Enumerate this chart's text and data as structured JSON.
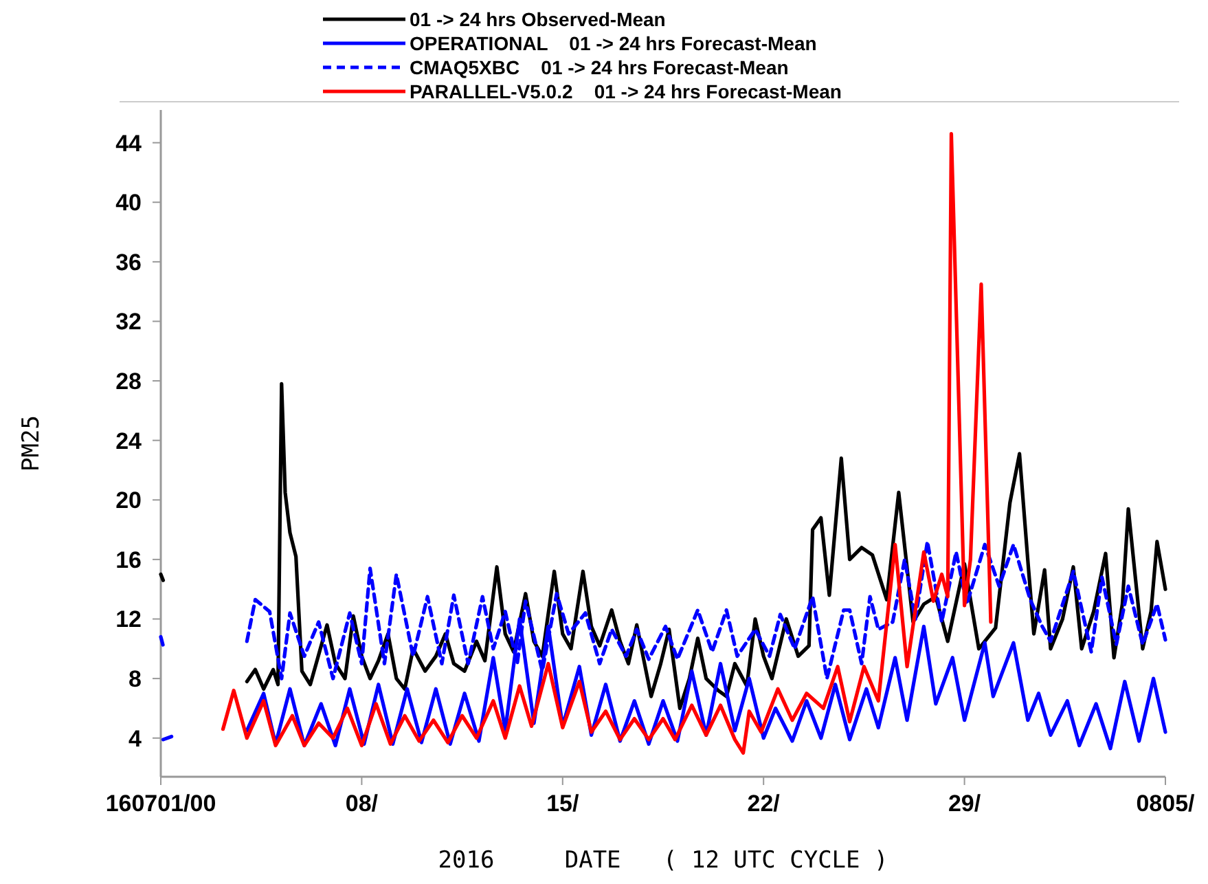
{
  "chart_data": {
    "type": "line",
    "xlabel": "2016     DATE   ( 12 UTC CYCLE )",
    "ylabel": "PM25",
    "legend": "top",
    "grid": false,
    "xlim": [
      "2016-07-01",
      "2016-08-05"
    ],
    "xticks": [
      {
        "value": "2016-07-01",
        "label": "160701/00"
      },
      {
        "value": "2016-07-08",
        "label": "08/"
      },
      {
        "value": "2016-07-15",
        "label": "15/"
      },
      {
        "value": "2016-07-22",
        "label": "22/"
      },
      {
        "value": "2016-07-29",
        "label": "29/"
      },
      {
        "value": "2016-08-05",
        "label": "0805/"
      }
    ],
    "ylim": [
      1.4,
      46.2
    ],
    "yticks": [
      4,
      8,
      12,
      16,
      20,
      24,
      28,
      32,
      36,
      40,
      44
    ],
    "series": [
      {
        "name": "01 -> 24 hrs Observed-Mean",
        "color": "#000000",
        "line_style": "solid",
        "x": [
          "2016-07-01T00:00",
          "2016-07-01T02:00",
          "2016-07-02T12:00",
          "2016-07-04T00:00",
          "2016-07-04T07:00",
          "2016-07-04T14:00",
          "2016-07-04T22:00",
          "2016-07-05T02:00",
          "2016-07-05T05:00",
          "2016-07-05T08:00",
          "2016-07-05T12:00",
          "2016-07-05T17:00",
          "2016-07-05T22:00",
          "2016-07-06T05:00",
          "2016-07-06T12:00",
          "2016-07-06T19:00",
          "2016-07-07T02:00",
          "2016-07-07T10:00",
          "2016-07-07T17:00",
          "2016-07-08T00:00",
          "2016-07-08T07:00",
          "2016-07-08T14:00",
          "2016-07-08T22:00",
          "2016-07-09T05:00",
          "2016-07-09T12:00",
          "2016-07-09T19:00",
          "2016-07-10T05:00",
          "2016-07-10T14:00",
          "2016-07-10T22:00",
          "2016-07-11T05:00",
          "2016-07-11T14:00",
          "2016-07-12T00:00",
          "2016-07-12T07:00",
          "2016-07-12T17:00",
          "2016-07-13T00:00",
          "2016-07-13T07:00",
          "2016-07-13T17:00",
          "2016-07-14T00:00",
          "2016-07-14T07:00",
          "2016-07-14T17:00",
          "2016-07-15T00:00",
          "2016-07-15T07:00",
          "2016-07-15T17:00",
          "2016-07-16T00:00",
          "2016-07-16T07:00",
          "2016-07-16T17:00",
          "2016-07-17T00:00",
          "2016-07-17T07:00",
          "2016-07-17T14:00",
          "2016-07-18T02:00",
          "2016-07-18T10:00",
          "2016-07-18T17:00",
          "2016-07-19T02:00",
          "2016-07-19T10:00",
          "2016-07-19T17:00",
          "2016-07-20T00:00",
          "2016-07-20T10:00",
          "2016-07-20T17:00",
          "2016-07-21T00:00",
          "2016-07-21T10:00",
          "2016-07-21T17:00",
          "2016-07-22T00:00",
          "2016-07-22T07:00",
          "2016-07-22T19:00",
          "2016-07-23T05:00",
          "2016-07-23T14:00",
          "2016-07-23T17:00",
          "2016-07-24T00:00",
          "2016-07-24T07:00",
          "2016-07-24T17:00",
          "2016-07-25T00:00",
          "2016-07-25T10:00",
          "2016-07-25T19:00",
          "2016-07-26T07:00",
          "2016-07-26T17:00",
          "2016-07-27T05:00",
          "2016-07-27T14:00",
          "2016-07-28T00:00",
          "2016-07-28T10:00",
          "2016-07-29T00:00",
          "2016-07-29T12:00",
          "2016-07-30T02:00",
          "2016-07-30T14:00",
          "2016-07-30T22:00",
          "2016-07-31T05:00",
          "2016-07-31T10:00",
          "2016-07-31T19:00",
          "2016-08-01T00:00",
          "2016-08-01T10:00",
          "2016-08-01T19:00",
          "2016-08-02T02:00",
          "2016-08-02T12:00",
          "2016-08-02T22:00",
          "2016-08-03T05:00",
          "2016-08-03T12:00",
          "2016-08-03T17:00",
          "2016-08-04T05:00",
          "2016-08-04T12:00",
          "2016-08-04T17:00",
          "2016-08-05T00:00"
        ],
        "values": [
          15.0,
          14.6,
          null,
          7.8,
          8.6,
          7.3,
          8.6,
          7.6,
          27.8,
          20.5,
          17.8,
          16.2,
          8.5,
          7.6,
          9.6,
          11.6,
          9.0,
          8.0,
          12.2,
          9.5,
          8.0,
          9.2,
          11.0,
          8.0,
          7.3,
          10.0,
          8.5,
          9.5,
          11.0,
          9.0,
          8.5,
          10.5,
          9.2,
          15.5,
          11.0,
          9.8,
          13.7,
          10.5,
          9.5,
          15.2,
          11.0,
          10.0,
          15.2,
          11.5,
          10.2,
          12.6,
          10.5,
          9.0,
          11.6,
          6.8,
          9.0,
          11.3,
          6.0,
          8.0,
          10.7,
          8.0,
          7.2,
          6.8,
          9.0,
          7.5,
          12.0,
          9.5,
          8.0,
          12.0,
          9.5,
          10.2,
          18.0,
          18.8,
          13.6,
          22.8,
          16.0,
          16.8,
          16.3,
          13.3,
          20.5,
          11.8,
          13.0,
          13.5,
          10.5,
          15.7,
          10.0,
          11.4,
          19.8,
          23.1,
          15.9,
          11.0,
          15.3,
          10.0,
          12.0,
          15.5,
          10.0,
          12.5,
          16.4,
          9.4,
          13.0,
          19.4,
          10.0,
          12.5,
          17.2,
          14.0
        ]
      },
      {
        "name": "OPERATIONAL    01 -> 24 hrs Forecast-Mean",
        "color": "#0000ff",
        "line_style": "solid",
        "x": [
          "2016-07-01T02:00",
          "2016-07-01T09:00",
          "2016-07-02T12:00",
          "2016-07-04T00:00",
          "2016-07-04T14:00",
          "2016-07-05T00:00",
          "2016-07-05T12:00",
          "2016-07-06T00:00",
          "2016-07-06T14:00",
          "2016-07-07T02:00",
          "2016-07-07T14:00",
          "2016-07-08T02:00",
          "2016-07-08T14:00",
          "2016-07-09T02:00",
          "2016-07-09T14:00",
          "2016-07-10T02:00",
          "2016-07-10T14:00",
          "2016-07-11T02:00",
          "2016-07-11T14:00",
          "2016-07-12T02:00",
          "2016-07-12T14:00",
          "2016-07-13T00:00",
          "2016-07-13T12:00",
          "2016-07-14T00:00",
          "2016-07-14T12:00",
          "2016-07-15T00:00",
          "2016-07-15T14:00",
          "2016-07-16T00:00",
          "2016-07-16T12:00",
          "2016-07-17T00:00",
          "2016-07-17T12:00",
          "2016-07-18T00:00",
          "2016-07-18T12:00",
          "2016-07-19T00:00",
          "2016-07-19T12:00",
          "2016-07-20T00:00",
          "2016-07-20T12:00",
          "2016-07-21T00:00",
          "2016-07-21T12:00",
          "2016-07-22T00:00",
          "2016-07-22T10:00",
          "2016-07-23T00:00",
          "2016-07-23T12:00",
          "2016-07-24T00:00",
          "2016-07-24T12:00",
          "2016-07-25T00:00",
          "2016-07-25T14:00",
          "2016-07-26T00:00",
          "2016-07-26T14:00",
          "2016-07-27T00:00",
          "2016-07-27T14:00",
          "2016-07-28T00:00",
          "2016-07-28T14:00",
          "2016-07-29T00:00",
          "2016-07-29T17:00",
          "2016-07-30T00:00",
          "2016-07-30T17:00",
          "2016-07-31T05:00",
          "2016-07-31T14:00",
          "2016-08-01T00:00",
          "2016-08-01T14:00",
          "2016-08-02T00:00",
          "2016-08-02T14:00",
          "2016-08-03T02:00",
          "2016-08-03T14:00",
          "2016-08-04T02:00",
          "2016-08-04T14:00",
          "2016-08-05T00:00"
        ],
        "values": [
          3.9,
          4.1,
          null,
          4.5,
          7.0,
          3.6,
          7.3,
          3.5,
          6.3,
          3.5,
          7.3,
          3.6,
          7.6,
          3.6,
          7.3,
          3.7,
          7.3,
          3.6,
          7.0,
          3.8,
          9.4,
          4.5,
          12.0,
          5.0,
          11.5,
          4.8,
          8.8,
          4.2,
          7.6,
          3.8,
          6.5,
          3.6,
          6.5,
          3.8,
          8.5,
          4.2,
          9.0,
          4.5,
          8.0,
          4.0,
          6.0,
          3.8,
          6.5,
          4.0,
          7.6,
          3.9,
          7.3,
          4.7,
          9.4,
          5.2,
          11.5,
          6.3,
          9.4,
          5.2,
          10.4,
          6.8,
          10.4,
          5.2,
          7.0,
          4.2,
          6.5,
          3.5,
          6.3,
          3.3,
          7.8,
          3.8,
          8.0,
          4.4
        ]
      },
      {
        "name": "CMAQ5XBC    01 -> 24 hrs Forecast-Mean",
        "color": "#0000ff",
        "line_style": "dashed",
        "x": [
          "2016-07-01T00:00",
          "2016-07-01T02:00",
          "2016-07-02T12:00",
          "2016-07-04T00:00",
          "2016-07-04T07:00",
          "2016-07-04T19:00",
          "2016-07-05T05:00",
          "2016-07-05T12:00",
          "2016-07-06T00:00",
          "2016-07-06T12:00",
          "2016-07-07T00:00",
          "2016-07-07T14:00",
          "2016-07-08T00:00",
          "2016-07-08T07:00",
          "2016-07-08T19:00",
          "2016-07-09T05:00",
          "2016-07-09T19:00",
          "2016-07-10T07:00",
          "2016-07-10T19:00",
          "2016-07-11T05:00",
          "2016-07-11T17:00",
          "2016-07-12T05:00",
          "2016-07-12T14:00",
          "2016-07-13T00:00",
          "2016-07-13T10:00",
          "2016-07-13T17:00",
          "2016-07-14T07:00",
          "2016-07-14T19:00",
          "2016-07-15T05:00",
          "2016-07-15T19:00",
          "2016-07-16T07:00",
          "2016-07-16T17:00",
          "2016-07-17T05:00",
          "2016-07-17T14:00",
          "2016-07-18T00:00",
          "2016-07-18T14:00",
          "2016-07-19T00:00",
          "2016-07-19T17:00",
          "2016-07-20T05:00",
          "2016-07-20T17:00",
          "2016-07-21T02:00",
          "2016-07-21T17:00",
          "2016-07-22T05:00",
          "2016-07-22T14:00",
          "2016-07-23T02:00",
          "2016-07-23T17:00",
          "2016-07-24T05:00",
          "2016-07-24T19:00",
          "2016-07-25T00:00",
          "2016-07-25T10:00",
          "2016-07-25T17:00",
          "2016-07-26T00:00",
          "2016-07-26T12:00",
          "2016-07-26T22:00",
          "2016-07-27T07:00",
          "2016-07-27T17:00",
          "2016-07-28T05:00",
          "2016-07-28T17:00",
          "2016-07-29T02:00",
          "2016-07-29T17:00",
          "2016-07-30T05:00",
          "2016-07-30T17:00",
          "2016-07-31T07:00",
          "2016-07-31T17:00",
          "2016-08-01T00:00",
          "2016-08-01T19:00",
          "2016-08-02T10:00",
          "2016-08-02T19:00",
          "2016-08-03T07:00",
          "2016-08-03T17:00",
          "2016-08-04T05:00",
          "2016-08-04T17:00",
          "2016-08-05T00:00"
        ],
        "values": [
          10.8,
          10.2,
          null,
          10.5,
          13.3,
          12.5,
          8.0,
          12.4,
          9.5,
          11.8,
          8.0,
          12.4,
          9.0,
          15.4,
          9.0,
          15.0,
          9.5,
          13.5,
          9.0,
          13.6,
          9.0,
          13.5,
          10.0,
          12.5,
          9.0,
          13.2,
          8.5,
          13.7,
          11.0,
          12.4,
          9.0,
          11.3,
          9.5,
          11.3,
          9.3,
          11.5,
          9.3,
          12.6,
          9.8,
          12.6,
          9.5,
          11.3,
          9.5,
          12.3,
          10.0,
          13.5,
          8.0,
          12.6,
          12.6,
          9.0,
          13.5,
          11.3,
          11.8,
          16.0,
          12.0,
          17.2,
          11.8,
          16.5,
          13.0,
          17.0,
          14.2,
          17.0,
          13.3,
          11.5,
          10.5,
          15.2,
          9.8,
          14.8,
          10.3,
          14.2,
          10.3,
          13.0,
          10.6
        ]
      },
      {
        "name": "PARALLEL-V5.0.2    01 -> 24 hrs Forecast-Mean",
        "color": "#ff0000",
        "line_style": "solid",
        "x": [
          "2016-07-03T04:00",
          "2016-07-03T13:00",
          "2016-07-04T00:00",
          "2016-07-04T14:00",
          "2016-07-05T00:00",
          "2016-07-05T14:00",
          "2016-07-06T00:00",
          "2016-07-06T12:00",
          "2016-07-07T00:00",
          "2016-07-07T12:00",
          "2016-07-08T00:00",
          "2016-07-08T12:00",
          "2016-07-09T00:00",
          "2016-07-09T12:00",
          "2016-07-10T00:00",
          "2016-07-10T12:00",
          "2016-07-11T00:00",
          "2016-07-11T12:00",
          "2016-07-12T00:00",
          "2016-07-12T14:00",
          "2016-07-13T00:00",
          "2016-07-13T12:00",
          "2016-07-13T22:00",
          "2016-07-14T12:00",
          "2016-07-15T00:00",
          "2016-07-15T14:00",
          "2016-07-16T00:00",
          "2016-07-16T12:00",
          "2016-07-17T00:00",
          "2016-07-17T12:00",
          "2016-07-18T00:00",
          "2016-07-18T12:00",
          "2016-07-18T22:00",
          "2016-07-19T12:00",
          "2016-07-20T00:00",
          "2016-07-20T12:00",
          "2016-07-21T00:00",
          "2016-07-21T07:00",
          "2016-07-21T12:00",
          "2016-07-21T22:00",
          "2016-07-22T12:00",
          "2016-07-23T00:00",
          "2016-07-23T12:00",
          "2016-07-24T02:00",
          "2016-07-24T14:00",
          "2016-07-25T00:00",
          "2016-07-25T12:00",
          "2016-07-26T00:00",
          "2016-07-26T14:00",
          "2016-07-27T00:00",
          "2016-07-27T14:00",
          "2016-07-27T22:00",
          "2016-07-28T05:00",
          "2016-07-28T10:00",
          "2016-07-28T13:00",
          "2016-07-29T00:00",
          "2016-07-29T05:00",
          "2016-07-29T14:00",
          "2016-07-29T22:00"
        ],
        "values": [
          4.6,
          7.2,
          4.0,
          6.5,
          3.5,
          5.5,
          3.5,
          5.0,
          4.0,
          6.0,
          3.5,
          6.3,
          3.6,
          5.5,
          3.8,
          5.2,
          3.7,
          5.5,
          4.0,
          6.5,
          4.0,
          7.5,
          4.8,
          9.0,
          4.7,
          7.8,
          4.4,
          5.8,
          3.9,
          5.3,
          3.9,
          5.3,
          3.9,
          6.2,
          4.2,
          6.2,
          3.9,
          3.0,
          5.8,
          4.4,
          7.3,
          5.2,
          7.0,
          6.0,
          8.8,
          5.1,
          8.8,
          6.5,
          17.0,
          8.8,
          16.5,
          13.2,
          15.0,
          13.5,
          44.6,
          12.9,
          16.0,
          34.5,
          11.8
        ]
      }
    ]
  }
}
